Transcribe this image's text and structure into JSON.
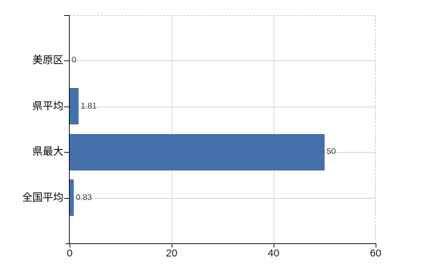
{
  "chart_data": {
    "type": "bar",
    "orientation": "horizontal",
    "title": "",
    "xlabel": "",
    "ylabel": "",
    "categories": [
      "美原区",
      "県平均",
      "県最大",
      "全国平均"
    ],
    "values": [
      0,
      1.81,
      50,
      0.83
    ],
    "value_labels": [
      "0",
      "1.81",
      "50",
      "0.83"
    ],
    "xlim": [
      0,
      60
    ],
    "x_ticks": [
      0,
      20,
      40,
      60
    ],
    "x_tick_labels": [
      "0",
      "20",
      "40",
      "60"
    ],
    "grid": true,
    "legend": "none",
    "colors": {
      "bar": "#4272ad",
      "bar_dither_light": "#4d7ab3",
      "bar_dither_dark": "#3b69a6",
      "h_gridline": "#ccd3c9",
      "v_gridline": "#d7d7d7",
      "border_dashed": "#c9c4c6",
      "axis": "#000000",
      "category_text": "#000000",
      "tick_text": "#1a1a1a",
      "value_text": "#3a3a3a",
      "background": "#ffffff"
    }
  }
}
